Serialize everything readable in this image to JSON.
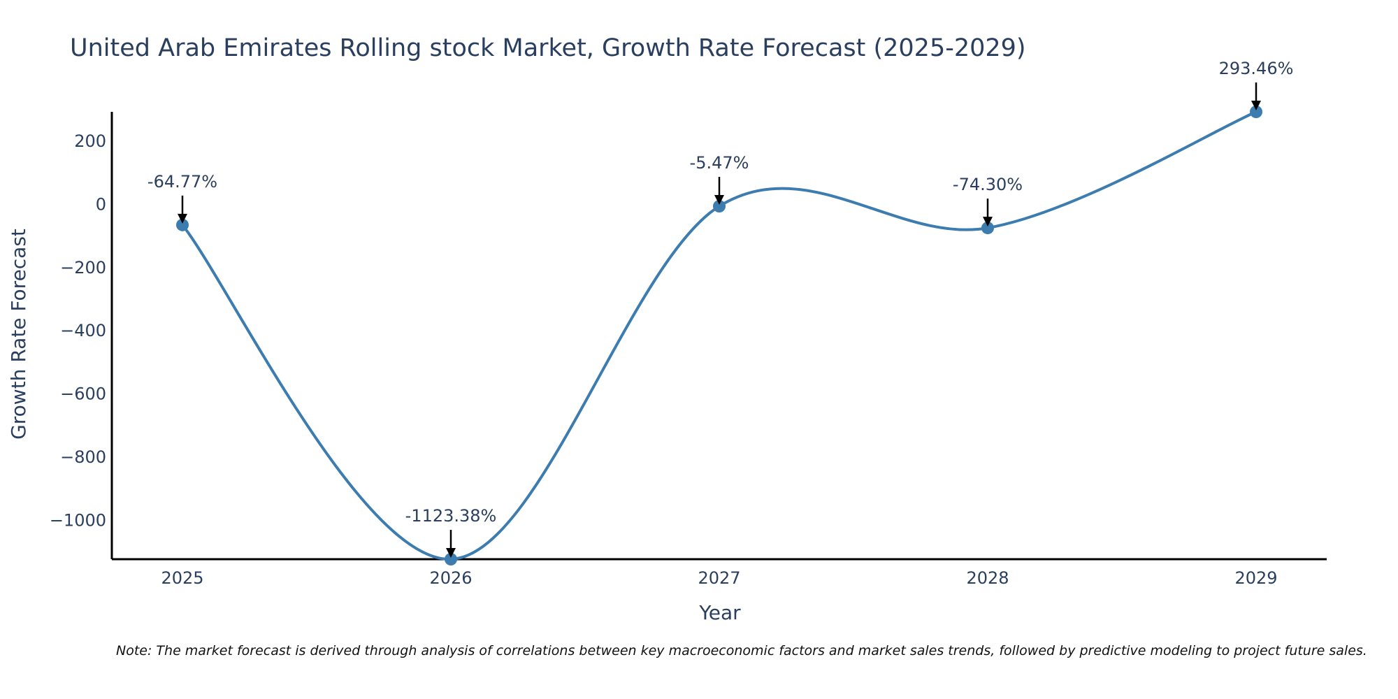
{
  "chart_data": {
    "type": "line",
    "title": "United Arab Emirates Rolling stock Market, Growth Rate Forecast (2025-2029)",
    "xlabel": "Year",
    "ylabel": "Growth Rate Forecast",
    "categories": [
      "2025",
      "2026",
      "2027",
      "2028",
      "2029"
    ],
    "values": [
      -64.77,
      -1123.38,
      -5.47,
      -74.3,
      293.46
    ],
    "data_labels": [
      "-64.77%",
      "-1123.38%",
      "-5.47%",
      "-74.30%",
      "293.46%"
    ],
    "y_ticks": [
      200,
      0,
      -200,
      -400,
      -600,
      -800,
      -1000
    ],
    "y_tick_labels": [
      "200",
      "0",
      "−200",
      "−400",
      "−600",
      "−800",
      "−1000"
    ],
    "ylim": [
      -1123.38,
      293.46
    ],
    "grid": false,
    "line_color": "#3d7caf",
    "marker_color": "#3d7caf"
  },
  "note": "Note: The market forecast is derived through analysis of correlations between key macroeconomic factors and market sales trends, followed by predictive modeling to project future sales."
}
